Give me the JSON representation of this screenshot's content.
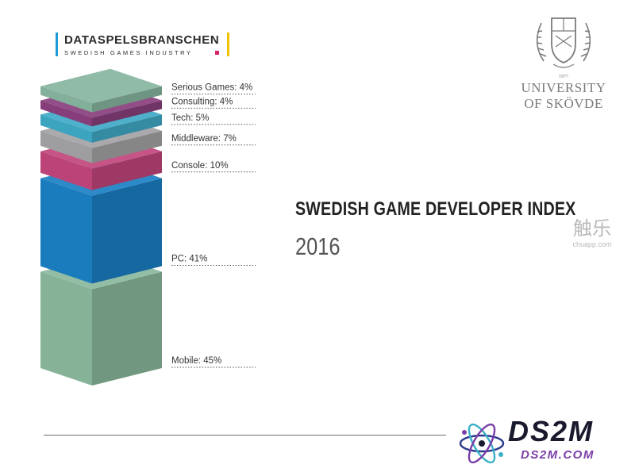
{
  "header": {
    "brand_title": "DATASPELSBRANSCHEN",
    "brand_subtitle": "SWEDISH GAMES INDUSTRY",
    "brand_bar_left_color": "#1e9ad6",
    "brand_bar_right_color": "#f2c200",
    "brand_dot_color": "#d6216b"
  },
  "university": {
    "emblem_icon": "university-crest-icon",
    "year": "1977",
    "line1": "UNIVERSITY",
    "line2": "OF SKÖVDE",
    "color": "#7b7b7b"
  },
  "headline": {
    "title": "SWEDISH GAME DEVELOPER INDEX",
    "year": "2016"
  },
  "watermark": {
    "main": "触乐",
    "sub": "chuapp.com"
  },
  "footer": {
    "logo_icon": "atom-icon",
    "logo_text": "DS2M",
    "logo_url": "DS2M.COM",
    "logo_color": "#1a1a2e",
    "url_color": "#7a3ea8"
  },
  "chart_data": {
    "type": "stacked-block",
    "categories": [
      "Serious Games",
      "Consulting",
      "Tech",
      "Middleware",
      "Console",
      "PC",
      "Mobile"
    ],
    "values": [
      4,
      4,
      5,
      7,
      10,
      41,
      45
    ],
    "labels": [
      "Serious Games: 4%",
      "Consulting: 4%",
      "Tech: 5%",
      "Middleware: 7%",
      "Console: 10%",
      "PC: 41%",
      "Mobile: 45%"
    ],
    "unit": "%",
    "colors": [
      "#86b59f",
      "#8a3f7e",
      "#3fa9c6",
      "#a3a3a5",
      "#c1457c",
      "#1b80c3",
      "#8ab89d"
    ]
  }
}
